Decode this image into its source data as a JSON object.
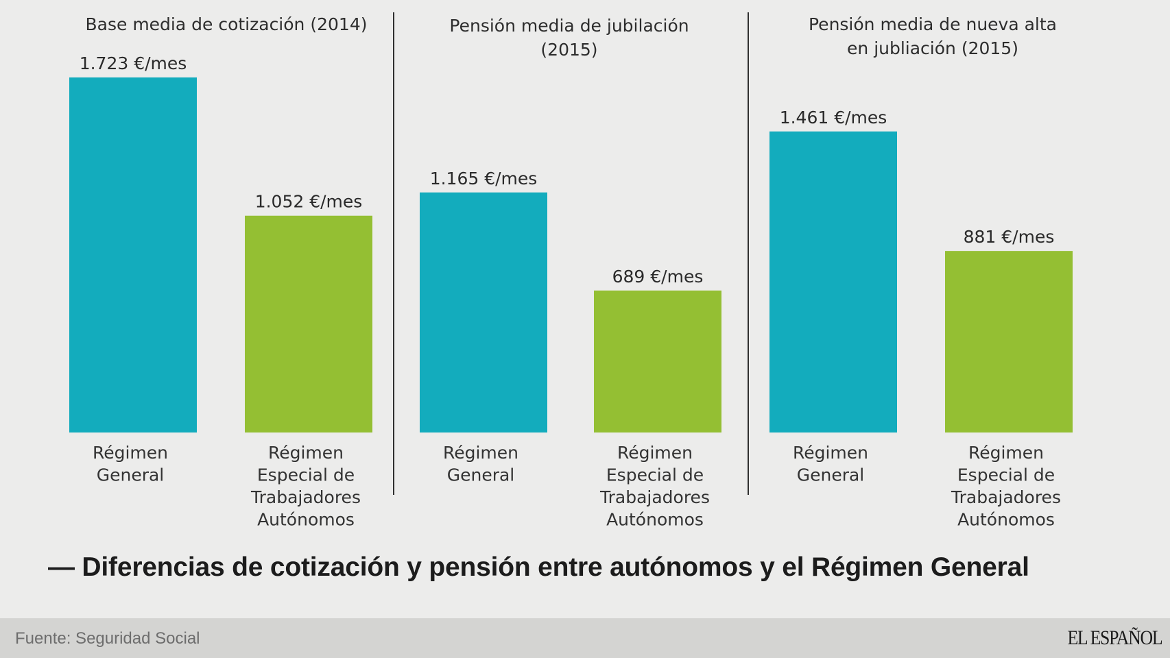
{
  "chart_data": {
    "type": "bar",
    "headline": "— Diferencias de cotización y pensión entre autónomos y el Régimen General",
    "source": "Fuente: Seguridad Social",
    "brand": "EL ESPAÑOL",
    "colors": {
      "general": "#13acbd",
      "autonomos": "#94bf33"
    },
    "unit_suffix": " €/mes",
    "panels": [
      {
        "title": "Base media de cotización (2014)",
        "bars": [
          {
            "category": "Régimen General",
            "label_lines": [
              "Régimen",
              "General"
            ],
            "value": 1723,
            "value_label": "1.723 €/mes"
          },
          {
            "category": "Régimen Especial de Trabajadores Autónomos",
            "label_lines": [
              "Régimen",
              "Especial de",
              "Trabajadores",
              "Autónomos"
            ],
            "value": 1052,
            "value_label": "1.052 €/mes"
          }
        ]
      },
      {
        "title": "Pensión media de jubilación\n(2015)",
        "bars": [
          {
            "category": "Régimen General",
            "label_lines": [
              "Régimen",
              "General"
            ],
            "value": 1165,
            "value_label": "1.165 €/mes"
          },
          {
            "category": "Régimen Especial de Trabajadores Autónomos",
            "label_lines": [
              "Régimen",
              "Especial de",
              "Trabajadores",
              "Autónomos"
            ],
            "value": 689,
            "value_label": "689 €/mes"
          }
        ]
      },
      {
        "title": "Pensión media de nueva alta\nen jubliación (2015)",
        "bars": [
          {
            "category": "Régimen General",
            "label_lines": [
              "Régimen",
              "General"
            ],
            "value": 1461,
            "value_label": "1.461 €/mes"
          },
          {
            "category": "Régimen Especial de Trabajadores Autónomos",
            "label_lines": [
              "Régimen",
              "Especial de",
              "Trabajadores",
              "Autónomos"
            ],
            "value": 881,
            "value_label": "881 €/mes"
          }
        ]
      }
    ]
  }
}
